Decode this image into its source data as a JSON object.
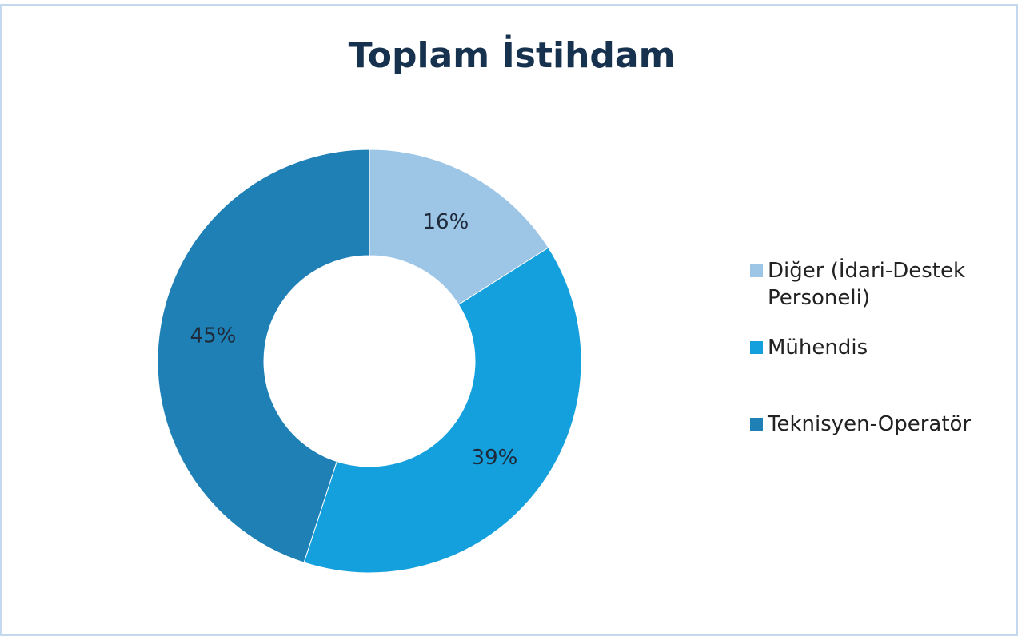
{
  "chart_data": {
    "type": "donut",
    "title": "Toplam İstihdam",
    "categories": [
      "Diğer (İdari-Destek Personeli)",
      "Mühendis",
      "Teknisyen-Operatör"
    ],
    "values": [
      16,
      39,
      45
    ],
    "value_labels": [
      "16%",
      "39%",
      "45%"
    ],
    "colors": [
      "#9cc5e6",
      "#14a0dc",
      "#1f80b6"
    ]
  }
}
